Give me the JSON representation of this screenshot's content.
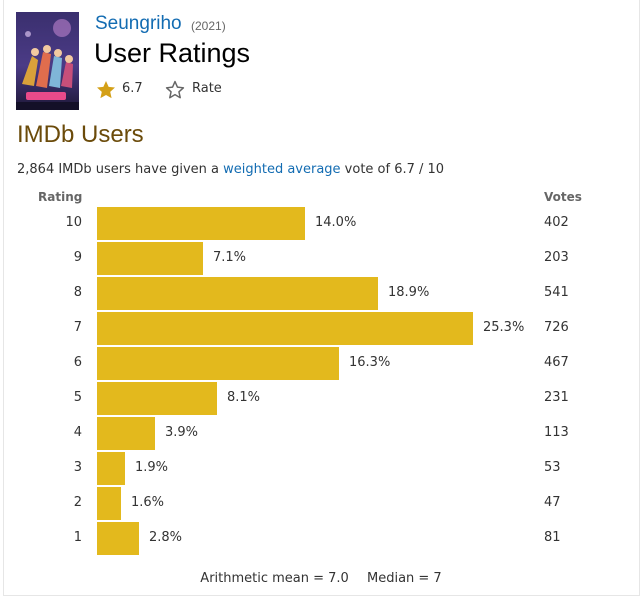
{
  "title": {
    "name": "Seungriho",
    "year": "(2021)",
    "page_heading": "User Ratings"
  },
  "rating": {
    "value": "6.7",
    "rate_label": "Rate"
  },
  "section": {
    "heading": "IMDb Users",
    "summary_prefix": "2,864 IMDb users have given a ",
    "summary_link": "weighted average",
    "summary_suffix": " vote of 6.7 / 10"
  },
  "colors": {
    "bar": "#e3b91d",
    "link": "#136cb2",
    "section_heading": "#6b4b0a"
  },
  "chart_data": {
    "type": "bar",
    "orientation": "horizontal",
    "column_headers": {
      "rating": "Rating",
      "votes": "Votes"
    },
    "categories": [
      "10",
      "9",
      "8",
      "7",
      "6",
      "5",
      "4",
      "3",
      "2",
      "1"
    ],
    "values": [
      14.0,
      7.1,
      18.9,
      25.3,
      16.3,
      8.1,
      3.9,
      1.9,
      1.6,
      2.8
    ],
    "value_labels": [
      "14.0%",
      "7.1%",
      "18.9%",
      "25.3%",
      "16.3%",
      "8.1%",
      "3.9%",
      "1.9%",
      "1.6%",
      "2.8%"
    ],
    "votes": [
      "402",
      "203",
      "541",
      "726",
      "467",
      "231",
      "113",
      "53",
      "47",
      "81"
    ],
    "xlim": [
      0,
      25.3
    ]
  },
  "stats": {
    "mean_text": "Arithmetic mean = 7.0",
    "median_text": "Median = 7"
  }
}
